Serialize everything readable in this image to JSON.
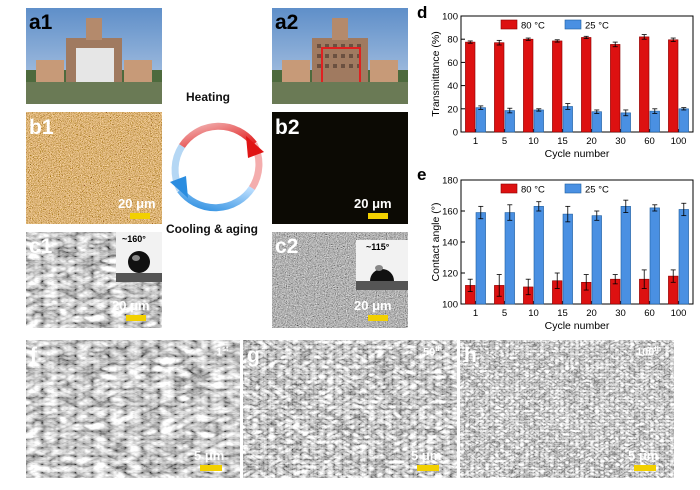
{
  "panels": {
    "a1": "a1",
    "a2": "a2",
    "b1": "b1",
    "b2": "b2",
    "c1": "c1",
    "c2": "c2",
    "d": "d",
    "e": "e",
    "f": "f",
    "g": "g",
    "h": "h"
  },
  "cycle_labels": {
    "heating": "Heating",
    "cooling": "Cooling & aging"
  },
  "scale_bars": {
    "b1": "20 μm",
    "b2": "20 μm",
    "c1": "20 μm",
    "c2": "20 μm",
    "f": "5 μm",
    "g": "5 μm",
    "h": "5 μm"
  },
  "contact_angles": {
    "c1": "~160°",
    "c2": "~115°"
  },
  "cycle_markers": {
    "f": "1",
    "f_sup": "st",
    "g": "50",
    "g_sup": "th",
    "h": "100",
    "h_sup": "th"
  },
  "colors": {
    "red": "#dd1111",
    "blue": "#4a90e2",
    "scale_bar": "#f2d000"
  },
  "chart_data": [
    {
      "panel": "d",
      "type": "bar",
      "categories": [
        "1",
        "5",
        "10",
        "15",
        "20",
        "30",
        "60",
        "100"
      ],
      "series": [
        {
          "name": "80 °C",
          "values": [
            77.5,
            77,
            80,
            78.5,
            81.5,
            75.5,
            82,
            79.5
          ],
          "errors": [
            1,
            2,
            1,
            1,
            1,
            2,
            2,
            1.5
          ]
        },
        {
          "name": "25 °C",
          "values": [
            21,
            18.5,
            19,
            22,
            17.5,
            16.5,
            18,
            20
          ],
          "errors": [
            1.5,
            2,
            1,
            2.5,
            1.5,
            2.5,
            2,
            1
          ]
        }
      ],
      "xlabel": "Cycle number",
      "ylabel": "Transmittance (%)",
      "ylim": [
        0,
        100
      ],
      "yticks": [
        0,
        20,
        40,
        60,
        80,
        100
      ],
      "legend": "top"
    },
    {
      "panel": "e",
      "type": "bar",
      "categories": [
        "1",
        "5",
        "10",
        "15",
        "20",
        "30",
        "60",
        "100"
      ],
      "series": [
        {
          "name": "80 °C",
          "values": [
            112,
            112,
            111,
            115,
            114,
            116,
            116,
            118
          ],
          "errors": [
            4,
            7,
            5,
            5,
            5,
            3,
            6,
            4
          ]
        },
        {
          "name": "25 °C",
          "values": [
            159,
            159,
            163,
            158,
            157,
            163,
            162,
            161
          ],
          "errors": [
            4,
            5,
            3,
            5,
            3,
            4,
            2,
            4
          ]
        }
      ],
      "xlabel": "Cycle number",
      "ylabel": "Contact angle (°)",
      "ylim": [
        100,
        180
      ],
      "yticks": [
        100,
        120,
        140,
        160,
        180
      ],
      "legend": "top"
    }
  ]
}
